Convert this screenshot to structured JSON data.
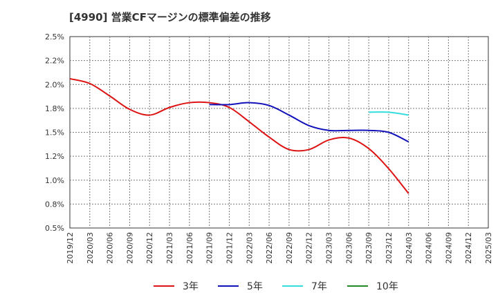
{
  "chart_data": {
    "type": "line",
    "title": "[4990]  営業CFマージンの標準偏差の推移",
    "xlabel": "",
    "ylabel": "",
    "grid": true,
    "legend_position": "bottom",
    "ylim": [
      0.005,
      0.025
    ],
    "y_ticks": [
      "2.5%",
      "2.2%",
      "2.0%",
      "1.8%",
      "1.5%",
      "1.2%",
      "1.0%",
      "0.8%",
      "0.5%"
    ],
    "y_tick_values": [
      0.025,
      0.0225,
      0.02,
      0.0175,
      0.015,
      0.0125,
      0.01,
      0.0075,
      0.005
    ],
    "x_ticks": [
      "2019/12",
      "2020/03",
      "2020/06",
      "2020/09",
      "2020/12",
      "2021/03",
      "2021/06",
      "2021/09",
      "2021/12",
      "2022/03",
      "2022/06",
      "2022/09",
      "2022/12",
      "2023/03",
      "2023/06",
      "2023/09",
      "2023/12",
      "2024/03",
      "2024/06",
      "2024/09",
      "2024/12",
      "2025/03"
    ],
    "series": [
      {
        "name": "3年",
        "color": "#dd1111",
        "x": [
          "2019/12",
          "2020/03",
          "2020/06",
          "2020/09",
          "2020/12",
          "2021/03",
          "2021/06",
          "2021/09",
          "2021/12",
          "2022/03",
          "2022/06",
          "2022/09",
          "2022/12",
          "2023/03",
          "2023/06",
          "2023/09",
          "2023/12",
          "2024/03"
        ],
        "values": [
          0.0206,
          0.0201,
          0.0188,
          0.0174,
          0.0168,
          0.0176,
          0.0181,
          0.0181,
          0.0176,
          0.0161,
          0.0145,
          0.0132,
          0.0132,
          0.0142,
          0.0144,
          0.0133,
          0.0112,
          0.0086
        ]
      },
      {
        "name": "5年",
        "color": "#1111bb",
        "x": [
          "2021/09",
          "2021/12",
          "2022/03",
          "2022/06",
          "2022/09",
          "2022/12",
          "2023/03",
          "2023/06",
          "2023/09",
          "2023/12",
          "2024/03"
        ],
        "values": [
          0.0179,
          0.0179,
          0.0181,
          0.0178,
          0.0168,
          0.0157,
          0.0152,
          0.0152,
          0.0152,
          0.015,
          0.014
        ]
      },
      {
        "name": "7年",
        "color": "#33dddd",
        "x": [
          "2023/09",
          "2023/12",
          "2024/03"
        ],
        "values": [
          0.0171,
          0.0171,
          0.0168
        ]
      },
      {
        "name": "10年",
        "color": "#228822",
        "x": [],
        "values": []
      }
    ]
  }
}
